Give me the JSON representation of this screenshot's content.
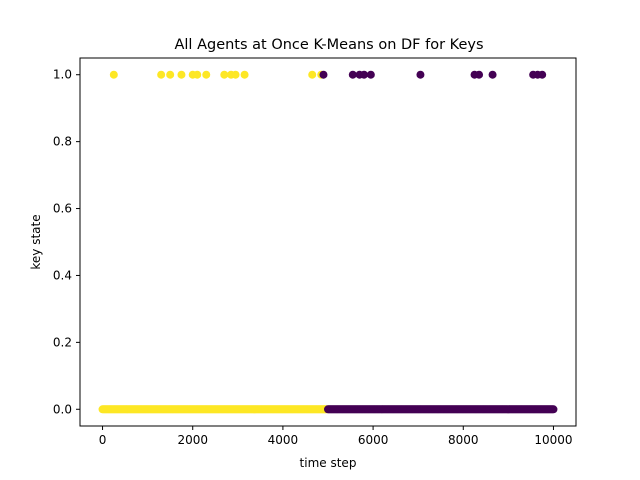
{
  "chart_data": {
    "type": "scatter",
    "title": "All Agents at Once K-Means on DF for Keys",
    "xlabel": "time step",
    "ylabel": "key state",
    "xlim": [
      -500,
      10500
    ],
    "ylim": [
      -0.05,
      1.05
    ],
    "x_ticks": [
      0,
      2000,
      4000,
      6000,
      8000,
      10000
    ],
    "y_ticks": [
      0.0,
      0.2,
      0.4,
      0.6,
      0.8,
      1.0
    ],
    "x_tick_labels": [
      "0",
      "2000",
      "4000",
      "6000",
      "8000",
      "10000"
    ],
    "y_tick_labels": [
      "0.0",
      "0.2",
      "0.4",
      "0.6",
      "0.8",
      "1.0"
    ],
    "grid": false,
    "colors": {
      "cluster_0": "#fde725",
      "cluster_1": "#440154"
    },
    "series": [
      {
        "color": "#fde725",
        "points_at_1": [
          250,
          1300,
          1500,
          1750,
          2000,
          2100,
          2300,
          2700,
          2850,
          2950,
          3150,
          4650,
          4850
        ],
        "points_at_0_range": [
          0,
          4990
        ]
      },
      {
        "color": "#440154",
        "points_at_1": [
          4900,
          5550,
          5700,
          5800,
          5950,
          7050,
          8250,
          8350,
          8650,
          9550,
          9650,
          9750
        ],
        "points_at_0_range": [
          5000,
          10000
        ]
      }
    ]
  }
}
